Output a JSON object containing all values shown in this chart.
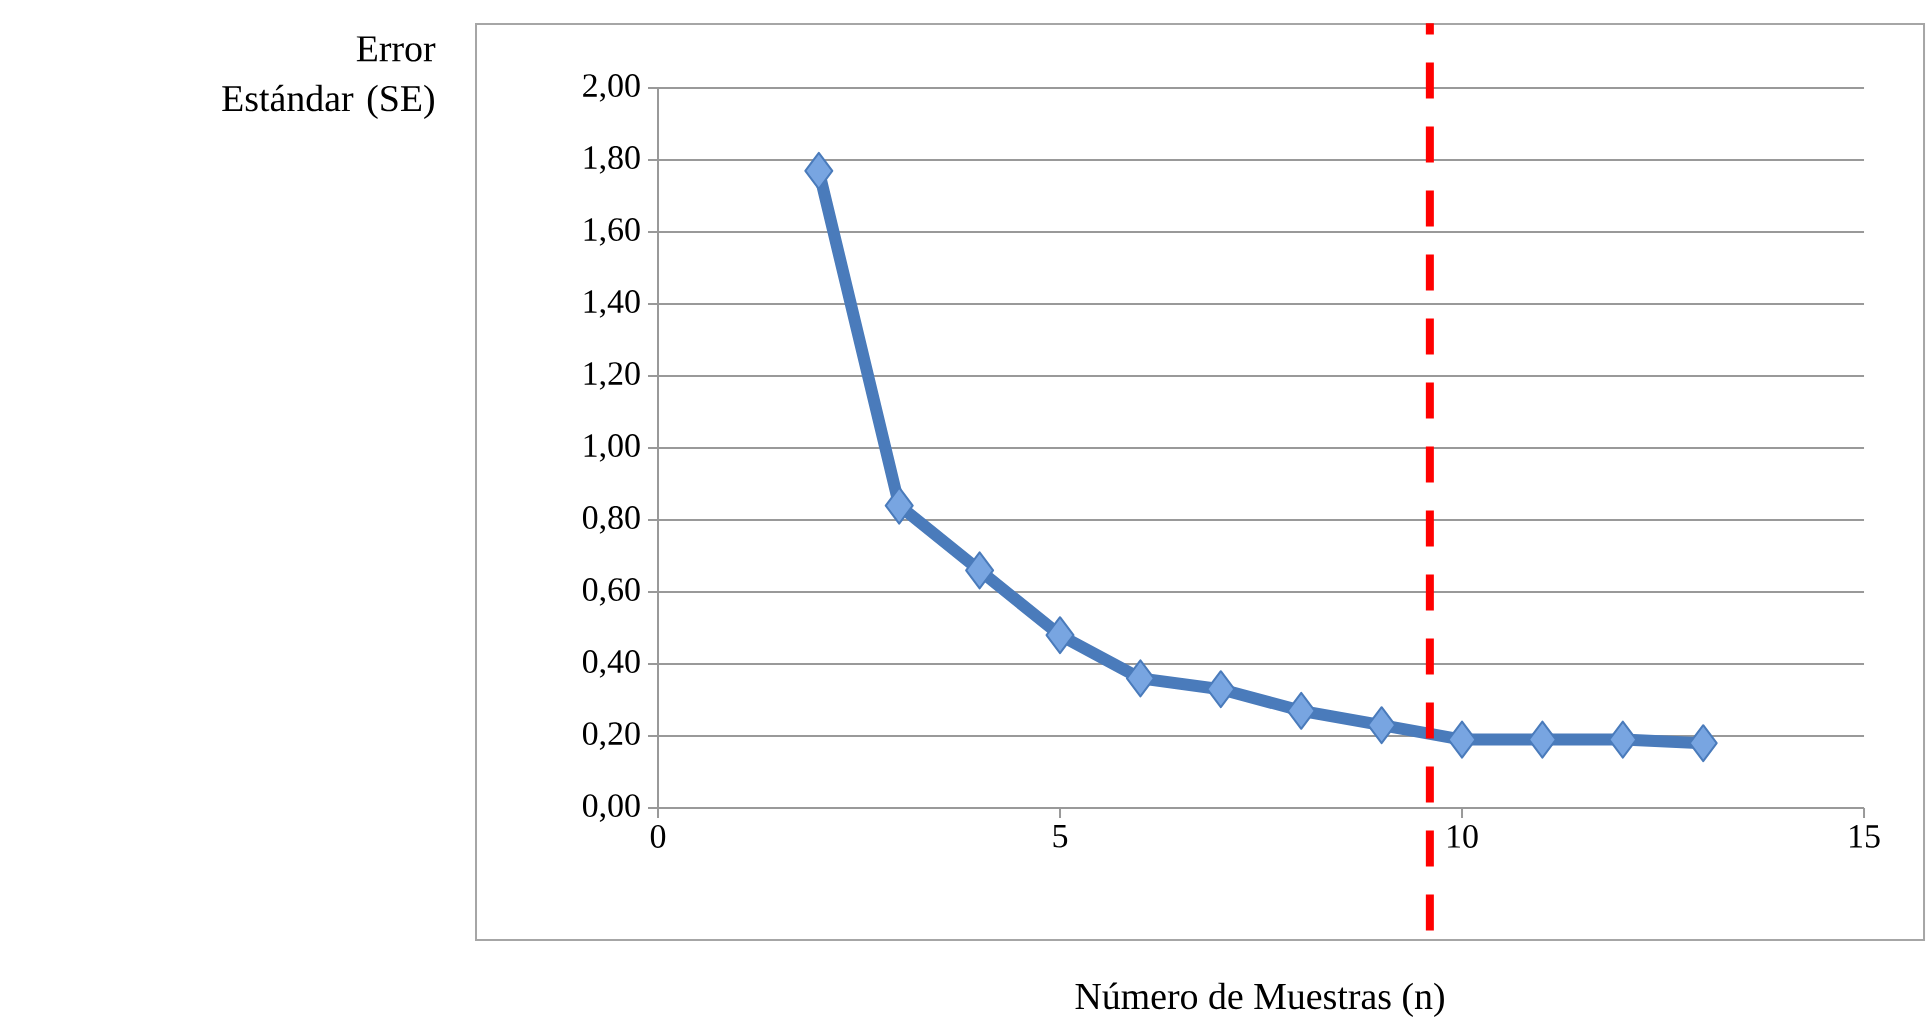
{
  "chart_data": {
    "type": "line",
    "xlabel": "Número de Muestras (n)",
    "ylabel": "Error Estándar (SE)",
    "x": [
      2,
      3,
      4,
      5,
      6,
      7,
      8,
      9,
      10,
      11,
      12,
      13
    ],
    "series": [
      {
        "color": "#4a7bbb",
        "values": [
          1.77,
          0.84,
          0.66,
          0.48,
          0.36,
          0.33,
          0.27,
          0.23,
          0.19,
          0.19,
          0.19,
          0.18
        ]
      }
    ],
    "xlim": [
      0,
      15
    ],
    "xticks": [
      0,
      5,
      10,
      15
    ],
    "ylim": [
      0,
      2
    ],
    "yticks": [
      {
        "value": 0,
        "label": "0,00"
      },
      {
        "value": 0.2,
        "label": "0,20"
      },
      {
        "value": 0.4,
        "label": "0,40"
      },
      {
        "value": 0.6,
        "label": "0,60"
      },
      {
        "value": 0.8,
        "label": "0,80"
      },
      {
        "value": 1.0,
        "label": "1,00"
      },
      {
        "value": 1.2,
        "label": "1,20"
      },
      {
        "value": 1.4,
        "label": "1,40"
      },
      {
        "value": 1.6,
        "label": "1,60"
      },
      {
        "value": 1.8,
        "label": "1,80"
      },
      {
        "value": 2.0,
        "label": "2,00"
      }
    ],
    "grid": "y",
    "marker": "diamond",
    "line_style": "solid",
    "ref_lines": [
      {
        "axis": "x",
        "value": 9.6,
        "color": "#ff0000",
        "line_style": "dashed"
      }
    ]
  }
}
